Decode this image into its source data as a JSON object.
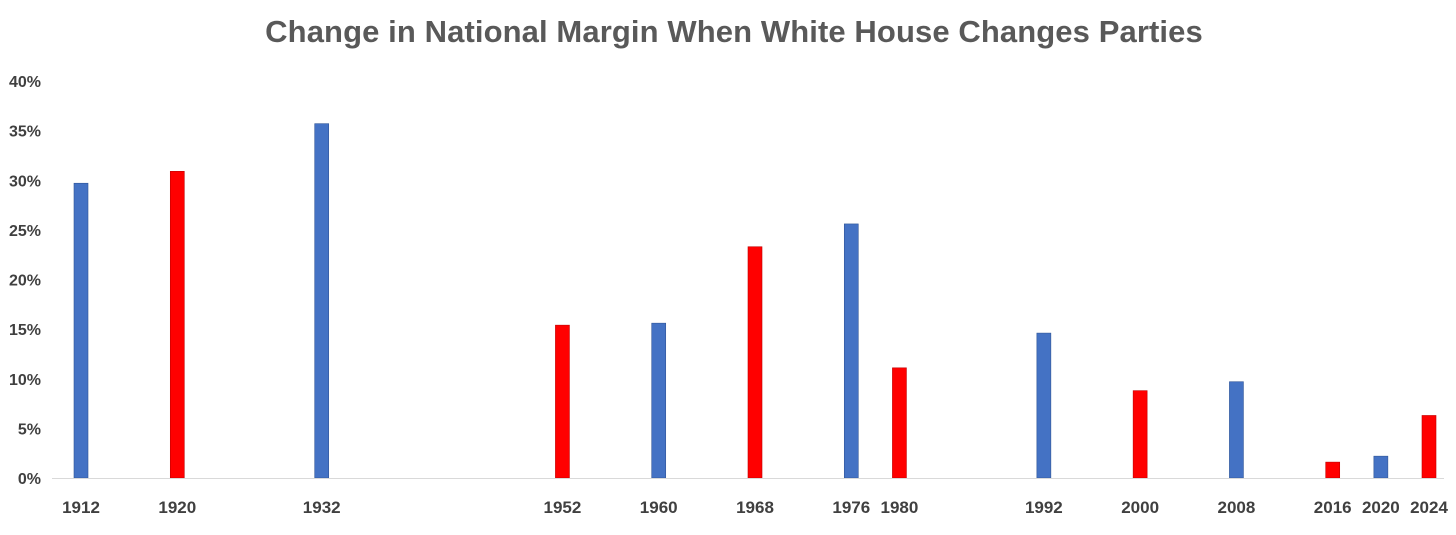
{
  "chart_data": {
    "type": "bar",
    "title": "Change in National Margin When White House Changes Parties",
    "xlabel": "",
    "ylabel": "",
    "ylim": [
      0,
      40
    ],
    "y_ticks": [
      "0%",
      "5%",
      "10%",
      "15%",
      "20%",
      "25%",
      "30%",
      "35%",
      "40%"
    ],
    "y_tick_values": [
      0,
      5,
      10,
      15,
      20,
      25,
      30,
      35,
      40
    ],
    "x_axis": "year",
    "x_range": [
      1912,
      2024
    ],
    "grid": false,
    "legend": "none",
    "colors": {
      "blue": "#4472C4",
      "red": "#FF0000"
    },
    "bars": [
      {
        "year": "1912",
        "value": 29.7,
        "color": "blue"
      },
      {
        "year": "1920",
        "value": 30.9,
        "color": "red"
      },
      {
        "year": "1932",
        "value": 35.7,
        "color": "blue"
      },
      {
        "year": "1952",
        "value": 15.4,
        "color": "red"
      },
      {
        "year": "1960",
        "value": 15.6,
        "color": "blue"
      },
      {
        "year": "1968",
        "value": 23.3,
        "color": "red"
      },
      {
        "year": "1976",
        "value": 25.6,
        "color": "blue"
      },
      {
        "year": "1980",
        "value": 11.1,
        "color": "red"
      },
      {
        "year": "1992",
        "value": 14.6,
        "color": "blue"
      },
      {
        "year": "2000",
        "value": 8.8,
        "color": "red"
      },
      {
        "year": "2008",
        "value": 9.7,
        "color": "blue"
      },
      {
        "year": "2016",
        "value": 1.6,
        "color": "red"
      },
      {
        "year": "2020",
        "value": 2.2,
        "color": "blue"
      },
      {
        "year": "2024",
        "value": 6.3,
        "color": "red"
      }
    ]
  }
}
